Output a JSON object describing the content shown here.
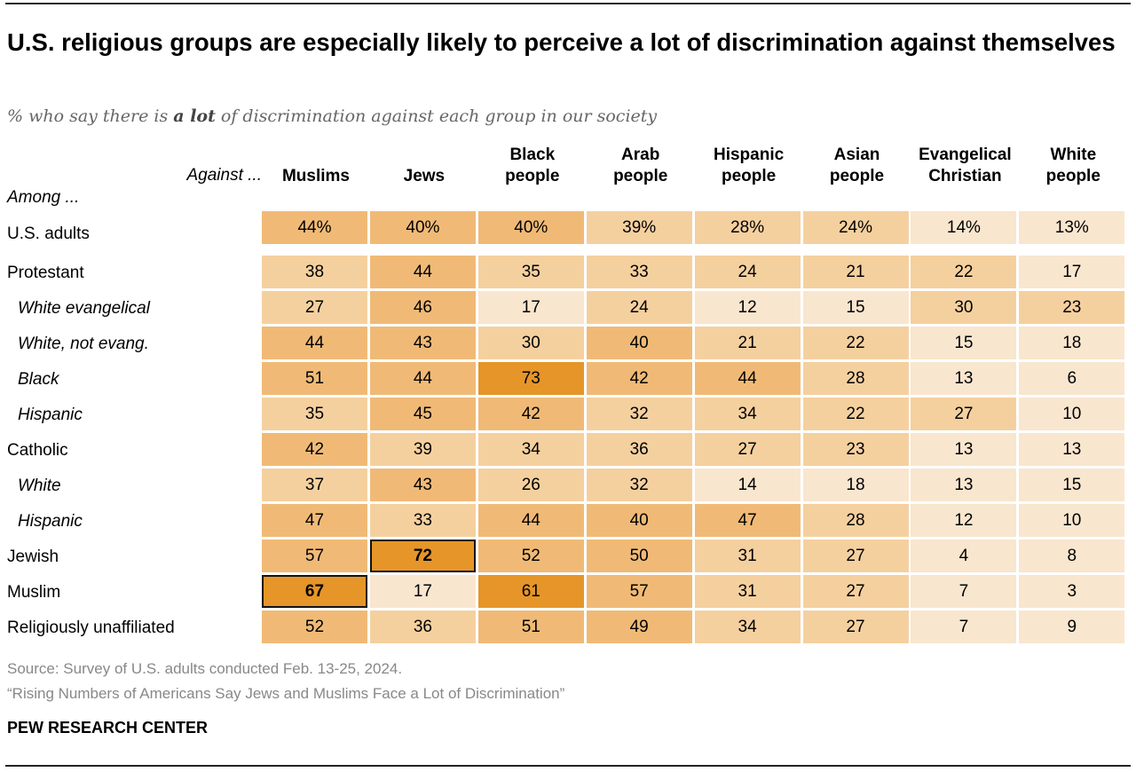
{
  "title": "U.S. religious groups are especially likely to perceive a lot of discrimination against themselves",
  "subtitle": {
    "before": "% who say there is ",
    "bold": "a lot",
    "after": " of discrimination against each group in our society"
  },
  "against_label": "Against ...",
  "among_label": "Among ...",
  "source": "Source: Survey of U.S. adults conducted Feb. 13-25, 2024.",
  "report": "“Rising Numbers of Americans Say Jews and Muslims Face a Lot of Discrimination”",
  "brand": "PEW RESEARCH CENTER",
  "colors": {
    "bin_lt20": "#F9E6CF",
    "bin_20_39": "#F5D09F",
    "bin_40_59": "#F0BA76",
    "bin_60plus": "#E69528"
  },
  "chart_data": {
    "type": "heatmap",
    "title": "U.S. religious groups are especially likely to perceive a lot of discrimination against themselves",
    "columns": [
      [
        "Muslims"
      ],
      [
        "Jews"
      ],
      [
        "Black",
        "people"
      ],
      [
        "Arab",
        "people"
      ],
      [
        "Hispanic",
        "people"
      ],
      [
        "Asian",
        "people"
      ],
      [
        "Evangelical",
        "Christian"
      ],
      [
        "White",
        "people"
      ]
    ],
    "rows": [
      {
        "label": "U.S. adults",
        "sub": false,
        "pct": true,
        "values": [
          44,
          40,
          40,
          39,
          28,
          24,
          14,
          13
        ]
      },
      {
        "label": "Protestant",
        "sub": false,
        "values": [
          38,
          44,
          35,
          33,
          24,
          21,
          22,
          17
        ]
      },
      {
        "label": "White evangelical",
        "sub": true,
        "values": [
          27,
          46,
          17,
          24,
          12,
          15,
          30,
          23
        ]
      },
      {
        "label": "White, not evang.",
        "sub": true,
        "values": [
          44,
          43,
          30,
          40,
          21,
          22,
          15,
          18
        ]
      },
      {
        "label": "Black",
        "sub": true,
        "values": [
          51,
          44,
          73,
          42,
          44,
          28,
          13,
          6
        ]
      },
      {
        "label": "Hispanic",
        "sub": true,
        "values": [
          35,
          45,
          42,
          32,
          34,
          22,
          27,
          10
        ]
      },
      {
        "label": "Catholic",
        "sub": false,
        "values": [
          42,
          39,
          34,
          36,
          27,
          23,
          13,
          13
        ]
      },
      {
        "label": "White",
        "sub": true,
        "values": [
          37,
          43,
          26,
          32,
          14,
          18,
          13,
          15
        ]
      },
      {
        "label": "Hispanic",
        "sub": true,
        "values": [
          47,
          33,
          44,
          40,
          47,
          28,
          12,
          10
        ]
      },
      {
        "label": "Jewish",
        "sub": false,
        "values": [
          57,
          72,
          52,
          50,
          31,
          27,
          4,
          8
        ],
        "highlight": 1
      },
      {
        "label": "Muslim",
        "sub": false,
        "values": [
          67,
          17,
          61,
          57,
          31,
          27,
          7,
          3
        ],
        "highlight": 0
      },
      {
        "label": "Religiously unaffiliated",
        "sub": false,
        "values": [
          52,
          36,
          51,
          49,
          34,
          27,
          7,
          9
        ]
      }
    ]
  }
}
